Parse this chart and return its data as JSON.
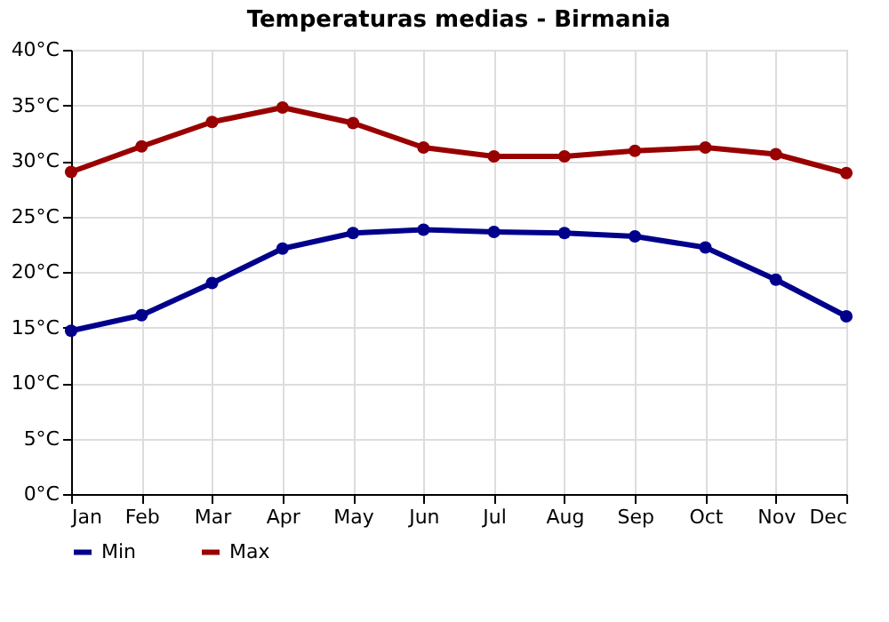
{
  "chart_data": {
    "type": "line",
    "title": "Temperaturas medias - Birmania",
    "categories": [
      "Jan",
      "Feb",
      "Mar",
      "Apr",
      "May",
      "Jun",
      "Jul",
      "Aug",
      "Sep",
      "Oct",
      "Nov",
      "Dec"
    ],
    "series": [
      {
        "name": "Min",
        "color": "#00008b",
        "values": [
          14.7,
          16.1,
          19.0,
          22.1,
          23.5,
          23.8,
          23.6,
          23.5,
          23.2,
          22.2,
          19.3,
          16.0
        ]
      },
      {
        "name": "Max",
        "color": "#990000",
        "values": [
          29.0,
          31.3,
          33.5,
          34.8,
          33.4,
          31.2,
          30.4,
          30.4,
          30.9,
          31.2,
          30.6,
          28.9
        ]
      }
    ],
    "ylim": [
      0,
      40
    ],
    "yticks": [
      {
        "value": 0,
        "label": "0°C"
      },
      {
        "value": 5,
        "label": "5°C"
      },
      {
        "value": 10,
        "label": "10°C"
      },
      {
        "value": 15,
        "label": "15°C"
      },
      {
        "value": 20,
        "label": "20°C"
      },
      {
        "value": 25,
        "label": "25°C"
      },
      {
        "value": 30,
        "label": "30°C"
      },
      {
        "value": 35,
        "label": "35°C"
      },
      {
        "value": 40,
        "label": "40°C"
      }
    ],
    "grid": true,
    "legend": "bottom left",
    "marker": "circle",
    "line_style": "solid"
  }
}
